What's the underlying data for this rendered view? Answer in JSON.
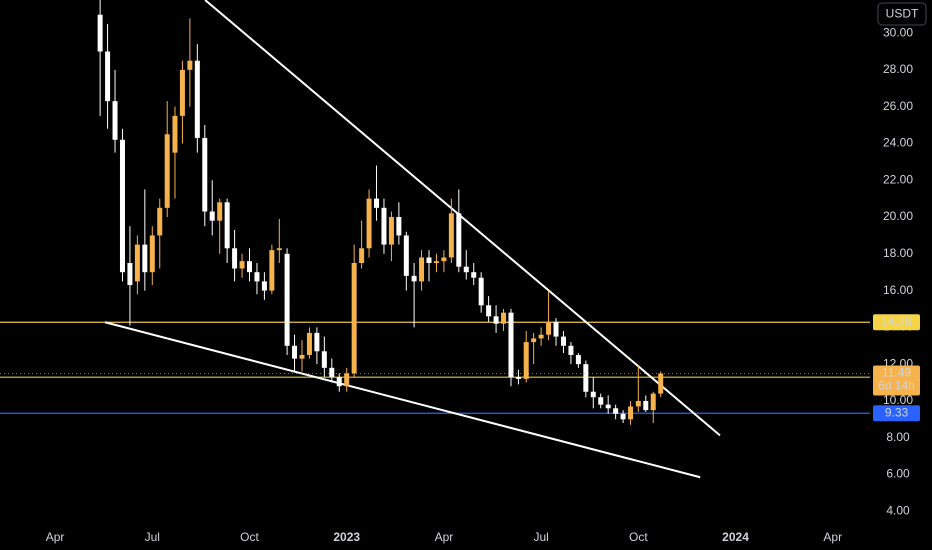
{
  "chart_data": {
    "type": "candlestick",
    "currency": "USDT",
    "up_color": "#f5b24d",
    "down_color": "#ffffff",
    "x": [
      4.39,
      4.62,
      4.85,
      5.08,
      5.31,
      5.54,
      5.77,
      6.0,
      6.23,
      6.46,
      6.7,
      6.93,
      7.16,
      7.39,
      7.62,
      7.85,
      8.08,
      8.31,
      8.54,
      8.77,
      9.0,
      9.23,
      9.46,
      9.69,
      9.92,
      10.16,
      10.39,
      10.62,
      10.85,
      11.08,
      11.31,
      11.54,
      11.77,
      12.0,
      12.23,
      12.46,
      12.69,
      12.92,
      13.15,
      13.38,
      13.61,
      13.84,
      14.08,
      14.31,
      14.54,
      14.77,
      15.0,
      15.23,
      15.46,
      15.69,
      15.92,
      16.15,
      16.38,
      16.61,
      16.84,
      17.07,
      17.3,
      17.54,
      17.77,
      18.0,
      18.23,
      18.46,
      18.69,
      18.92,
      19.15,
      19.38,
      19.61,
      19.84,
      20.07,
      20.3,
      20.53,
      20.76,
      21.0,
      21.23,
      21.46,
      21.69
    ],
    "open": [
      31.0,
      29.0,
      26.3,
      24.2,
      17.5,
      16.5,
      18.5,
      17.0,
      19.0,
      20.5,
      23.5,
      25.5,
      28.0,
      28.5,
      24.3,
      20.3,
      19.8,
      20.8,
      18.3,
      17.2,
      17.6,
      17.0,
      16.5,
      16.0,
      18.2,
      18.0,
      13.0,
      12.3,
      12.5,
      13.7,
      12.7,
      11.8,
      11.3,
      10.8,
      11.5,
      17.5,
      18.3,
      21.0,
      20.5,
      18.5,
      20.0,
      19.0,
      16.8,
      16.5,
      17.8,
      17.5,
      17.6,
      17.8,
      20.2,
      17.3,
      17.0,
      16.7,
      15.2,
      14.6,
      14.2,
      14.8,
      11.3,
      11.2,
      13.2,
      13.4,
      13.6,
      14.3,
      13.5,
      13.0,
      12.5,
      12.0,
      10.5,
      10.2,
      9.8,
      9.6,
      9.3,
      9.0,
      9.7,
      10.0,
      9.5,
      10.4
    ],
    "high": [
      32.0,
      30.5,
      28.0,
      24.8,
      19.5,
      19.0,
      21.5,
      19.5,
      21.0,
      26.3,
      26.0,
      28.5,
      30.8,
      29.4,
      25.0,
      22.0,
      21.0,
      21.0,
      19.3,
      18.0,
      18.3,
      17.5,
      17.0,
      18.5,
      19.9,
      18.3,
      13.6,
      13.3,
      14.0,
      14.0,
      13.5,
      12.3,
      11.5,
      11.8,
      18.5,
      19.8,
      21.5,
      22.8,
      21.0,
      20.3,
      20.8,
      19.2,
      17.5,
      18.2,
      18.2,
      18.0,
      18.2,
      21.0,
      21.5,
      18.2,
      17.5,
      17.0,
      15.7,
      15.2,
      15.0,
      15.0,
      11.7,
      13.8,
      13.7,
      14.0,
      16.0,
      14.5,
      13.8,
      13.2,
      12.6,
      12.2,
      11.3,
      10.4,
      10.3,
      9.8,
      9.5,
      10.0,
      11.9,
      10.3,
      10.5,
      11.6
    ],
    "low": [
      25.5,
      24.8,
      23.5,
      16.5,
      14.1,
      15.8,
      16.0,
      16.3,
      17.2,
      20.0,
      21.0,
      24.0,
      26.0,
      23.5,
      19.5,
      19.0,
      18.0,
      17.5,
      16.5,
      16.7,
      16.5,
      15.8,
      15.5,
      15.8,
      17.5,
      12.5,
      11.6,
      11.6,
      12.3,
      12.0,
      11.3,
      11.0,
      10.5,
      10.5,
      11.3,
      17.2,
      17.8,
      19.8,
      18.0,
      17.6,
      18.5,
      16.0,
      14.0,
      16.0,
      16.5,
      17.0,
      17.0,
      17.5,
      17.0,
      16.6,
      16.3,
      14.8,
      14.3,
      13.7,
      13.8,
      10.8,
      10.9,
      11.0,
      12.0,
      13.0,
      13.3,
      13.0,
      12.6,
      12.0,
      11.8,
      10.2,
      9.6,
      9.6,
      9.3,
      9.0,
      8.8,
      8.7,
      9.4,
      9.4,
      8.8,
      10.2
    ],
    "close": [
      29.0,
      26.3,
      24.2,
      17.0,
      16.3,
      18.5,
      17.0,
      19.0,
      20.5,
      24.5,
      25.5,
      28.0,
      28.5,
      24.3,
      20.3,
      19.8,
      20.8,
      18.3,
      17.2,
      17.6,
      17.0,
      16.5,
      16.0,
      18.2,
      18.3,
      13.0,
      12.3,
      12.5,
      13.7,
      12.7,
      11.8,
      11.3,
      10.8,
      11.5,
      17.5,
      18.3,
      21.0,
      20.5,
      18.5,
      20.0,
      19.0,
      16.8,
      16.5,
      17.8,
      17.5,
      17.6,
      17.8,
      20.2,
      17.3,
      17.0,
      16.7,
      15.2,
      14.6,
      14.2,
      14.8,
      11.3,
      11.2,
      13.2,
      13.4,
      13.6,
      14.3,
      13.5,
      13.0,
      12.5,
      12.0,
      10.5,
      10.2,
      9.8,
      9.6,
      9.3,
      9.0,
      9.7,
      10.0,
      9.5,
      10.4,
      11.49
    ],
    "countdown": "6d 14h",
    "hlines": [
      {
        "value": 14.28,
        "color": "#e8c547",
        "label_bg": "#f5d547"
      },
      {
        "value": 11.29,
        "color": "#e8c547",
        "label_bg": "#f5e94d"
      },
      {
        "value": 9.33,
        "color": "#2962ff",
        "label_bg": "#2962ff"
      }
    ],
    "trendlines": [
      {
        "x": [
          7.63,
          23.52
        ],
        "values": [
          31.8,
          8.13
        ],
        "color": "#ffffff"
      },
      {
        "x": [
          4.54,
          22.91
        ],
        "values": [
          14.28,
          5.85
        ],
        "color": "#ffffff"
      }
    ],
    "xlim": [
      1.3,
      28.15
    ],
    "ylim": [
      3.2,
      31.8
    ],
    "xticks": [
      {
        "value": 3,
        "label": "Apr"
      },
      {
        "value": 6,
        "label": "Jul"
      },
      {
        "value": 9,
        "label": "Oct"
      },
      {
        "value": 12,
        "label": "2023"
      },
      {
        "value": 15,
        "label": "Apr"
      },
      {
        "value": 18,
        "label": "Jul"
      },
      {
        "value": 21,
        "label": "Oct"
      },
      {
        "value": 24,
        "label": "2024"
      },
      {
        "value": 27,
        "label": "Apr"
      }
    ],
    "yticks": [
      {
        "value": 4,
        "label": "4.00"
      },
      {
        "value": 6,
        "label": "6.00"
      },
      {
        "value": 8,
        "label": "8.00"
      },
      {
        "value": 10,
        "label": "10.00"
      },
      {
        "value": 12,
        "label": "12.00"
      },
      {
        "value": 14,
        "label": "14.00"
      },
      {
        "value": 16,
        "label": "16.00"
      },
      {
        "value": 18,
        "label": "18.00"
      },
      {
        "value": 20,
        "label": "20.00"
      },
      {
        "value": 22,
        "label": "22.00"
      },
      {
        "value": 24,
        "label": "24.00"
      },
      {
        "value": 26,
        "label": "26.00"
      },
      {
        "value": 28,
        "label": "28.00"
      },
      {
        "value": 30,
        "label": "30.00"
      }
    ],
    "grid": false
  }
}
